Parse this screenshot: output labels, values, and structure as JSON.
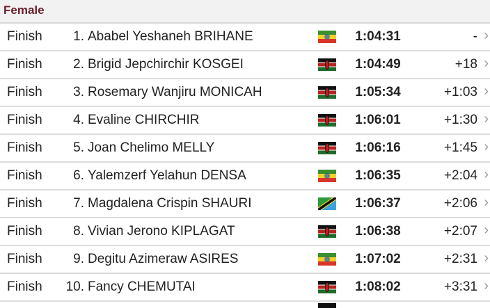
{
  "section_title": "Female",
  "results": [
    {
      "status": "Finish",
      "rank": "1.",
      "name": "Ababel Yeshaneh BRIHANE",
      "country_flag": "ethiopia",
      "time": "1:04:31",
      "gap": "-"
    },
    {
      "status": "Finish",
      "rank": "2.",
      "name": "Brigid Jepchirchir KOSGEI",
      "country_flag": "kenya",
      "time": "1:04:49",
      "gap": "+18"
    },
    {
      "status": "Finish",
      "rank": "3.",
      "name": "Rosemary Wanjiru MONICAH",
      "country_flag": "kenya",
      "time": "1:05:34",
      "gap": "+1:03"
    },
    {
      "status": "Finish",
      "rank": "4.",
      "name": "Evaline CHIRCHIR",
      "country_flag": "kenya",
      "time": "1:06:01",
      "gap": "+1:30"
    },
    {
      "status": "Finish",
      "rank": "5.",
      "name": "Joan Chelimo MELLY",
      "country_flag": "kenya",
      "time": "1:06:16",
      "gap": "+1:45"
    },
    {
      "status": "Finish",
      "rank": "6.",
      "name": "Yalemzerf Yelahun DENSA",
      "country_flag": "ethiopia",
      "time": "1:06:35",
      "gap": "+2:04"
    },
    {
      "status": "Finish",
      "rank": "7.",
      "name": "Magdalena Crispin SHAURI",
      "country_flag": "tanzania",
      "time": "1:06:37",
      "gap": "+2:06"
    },
    {
      "status": "Finish",
      "rank": "8.",
      "name": "Vivian Jerono KIPLAGAT",
      "country_flag": "kenya",
      "time": "1:06:38",
      "gap": "+2:07"
    },
    {
      "status": "Finish",
      "rank": "9.",
      "name": "Degitu Azimeraw ASIRES",
      "country_flag": "ethiopia",
      "time": "1:07:02",
      "gap": "+2:31"
    },
    {
      "status": "Finish",
      "rank": "10.",
      "name": "Fancy CHEMUTAI",
      "country_flag": "kenya",
      "time": "1:08:02",
      "gap": "+3:31"
    }
  ],
  "colors": {
    "section_title": "#6b1f2a",
    "header_bg": "#f2f2f2"
  }
}
